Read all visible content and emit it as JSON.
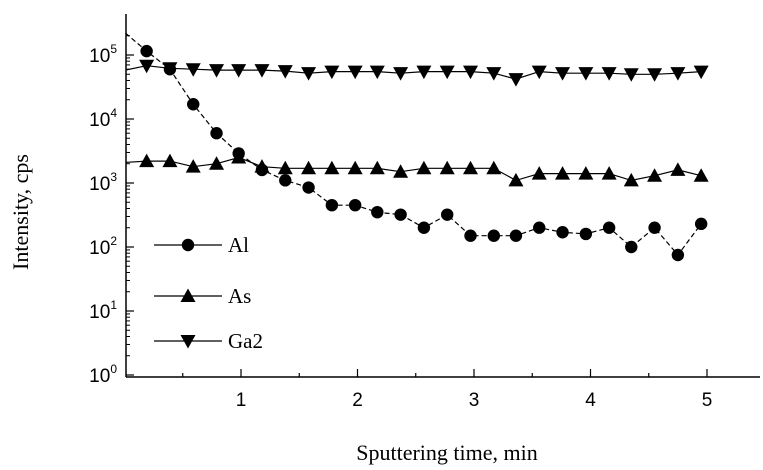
{
  "chart_data": {
    "type": "line",
    "title": "",
    "xlabel": "Sputtering time, min",
    "ylabel": "Intensity, cps",
    "xlim": [
      0,
      5.55
    ],
    "ylim": [
      1,
      250000
    ],
    "yscale": "log",
    "grid": false,
    "legend_position": "lower-left",
    "x_ticks": [
      {
        "value": 1,
        "label": "1"
      },
      {
        "value": 2,
        "label": "2"
      },
      {
        "value": 3,
        "label": "3"
      },
      {
        "value": 4,
        "label": "4"
      },
      {
        "value": 5,
        "label": "5"
      }
    ],
    "y_ticks": [
      {
        "value": 1,
        "base": "10",
        "exp": "0"
      },
      {
        "value": 10,
        "base": "10",
        "exp": "1"
      },
      {
        "value": 100,
        "base": "10",
        "exp": "2"
      },
      {
        "value": 1000,
        "base": "10",
        "exp": "3"
      },
      {
        "value": 10000,
        "base": "10",
        "exp": "4"
      },
      {
        "value": 100000,
        "base": "10",
        "exp": "5"
      }
    ],
    "series": [
      {
        "name": "Al",
        "marker": "circle",
        "line_style": "dashed",
        "line_start": [
          0,
          220000
        ],
        "x": [
          0.19,
          0.39,
          0.59,
          0.79,
          0.98,
          1.18,
          1.38,
          1.58,
          1.78,
          1.98,
          2.17,
          2.37,
          2.57,
          2.77,
          2.97,
          3.17,
          3.36,
          3.56,
          3.76,
          3.96,
          4.16,
          4.35,
          4.55,
          4.75,
          4.95
        ],
        "y": [
          115000,
          60000,
          17000,
          6000,
          2900,
          1600,
          1100,
          850,
          450,
          450,
          350,
          320,
          200,
          320,
          150,
          150,
          150,
          200,
          170,
          160,
          200,
          100,
          200,
          75,
          230
        ]
      },
      {
        "name": "As",
        "marker": "triangle-up",
        "line_style": "solid",
        "line_start": [
          0,
          2100
        ],
        "x": [
          0.19,
          0.39,
          0.59,
          0.79,
          0.98,
          1.18,
          1.38,
          1.58,
          1.78,
          1.98,
          2.17,
          2.37,
          2.57,
          2.77,
          2.97,
          3.17,
          3.36,
          3.56,
          3.76,
          3.96,
          4.16,
          4.35,
          4.55,
          4.75,
          4.95
        ],
        "y": [
          2200,
          2200,
          1800,
          2000,
          2500,
          1800,
          1700,
          1700,
          1700,
          1700,
          1700,
          1500,
          1700,
          1700,
          1700,
          1700,
          1100,
          1400,
          1400,
          1400,
          1400,
          1100,
          1300,
          1600,
          1300
        ]
      },
      {
        "name": "Ga2",
        "marker": "triangle-down",
        "line_style": "solid",
        "line_start": [
          0,
          58000
        ],
        "x": [
          0.19,
          0.39,
          0.59,
          0.79,
          0.98,
          1.18,
          1.38,
          1.58,
          1.78,
          1.98,
          2.17,
          2.37,
          2.57,
          2.77,
          2.97,
          3.17,
          3.36,
          3.56,
          3.76,
          3.96,
          4.16,
          4.35,
          4.55,
          4.75,
          4.95
        ],
        "y": [
          68000,
          62000,
          60000,
          58000,
          58000,
          58000,
          56000,
          52000,
          55000,
          55000,
          55000,
          52000,
          55000,
          55000,
          55000,
          52000,
          42000,
          55000,
          52000,
          52000,
          52000,
          50000,
          50000,
          52000,
          55000
        ]
      }
    ]
  }
}
